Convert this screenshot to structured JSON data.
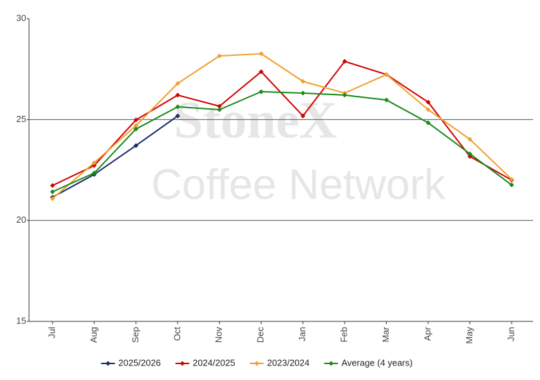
{
  "chart_data": {
    "type": "line",
    "watermark": [
      "StoneX",
      "Coffee Network"
    ],
    "categories": [
      "Jul",
      "Aug",
      "Sep",
      "Oct",
      "Nov",
      "Dec",
      "Jan",
      "Feb",
      "Mar",
      "Apr",
      "May",
      "Jun"
    ],
    "series": [
      {
        "name": "2025/2026",
        "color": "#1a2a6c",
        "values": [
          21.15,
          22.28,
          23.71,
          25.18,
          null,
          null,
          null,
          null,
          null,
          null,
          null,
          null
        ]
      },
      {
        "name": "2024/2025",
        "color": "#d40000",
        "values": [
          21.73,
          22.72,
          24.98,
          26.21,
          25.66,
          27.37,
          25.18,
          27.88,
          27.23,
          25.86,
          23.17,
          22.0
        ]
      },
      {
        "name": "2023/2024",
        "color": "#f0a030",
        "values": [
          21.08,
          22.86,
          24.7,
          26.79,
          28.15,
          28.26,
          26.89,
          26.31,
          27.23,
          25.49,
          24.02,
          22.04
        ]
      },
      {
        "name": "Average (4 years)",
        "color": "#1a8a1a",
        "values": [
          21.42,
          22.35,
          24.53,
          25.63,
          25.49,
          26.38,
          26.31,
          26.21,
          25.97,
          24.84,
          23.3,
          21.76
        ]
      }
    ],
    "ylim": [
      15,
      30
    ],
    "yticks": [
      15,
      20,
      25,
      30
    ],
    "grid": true,
    "legend": "bottom"
  }
}
